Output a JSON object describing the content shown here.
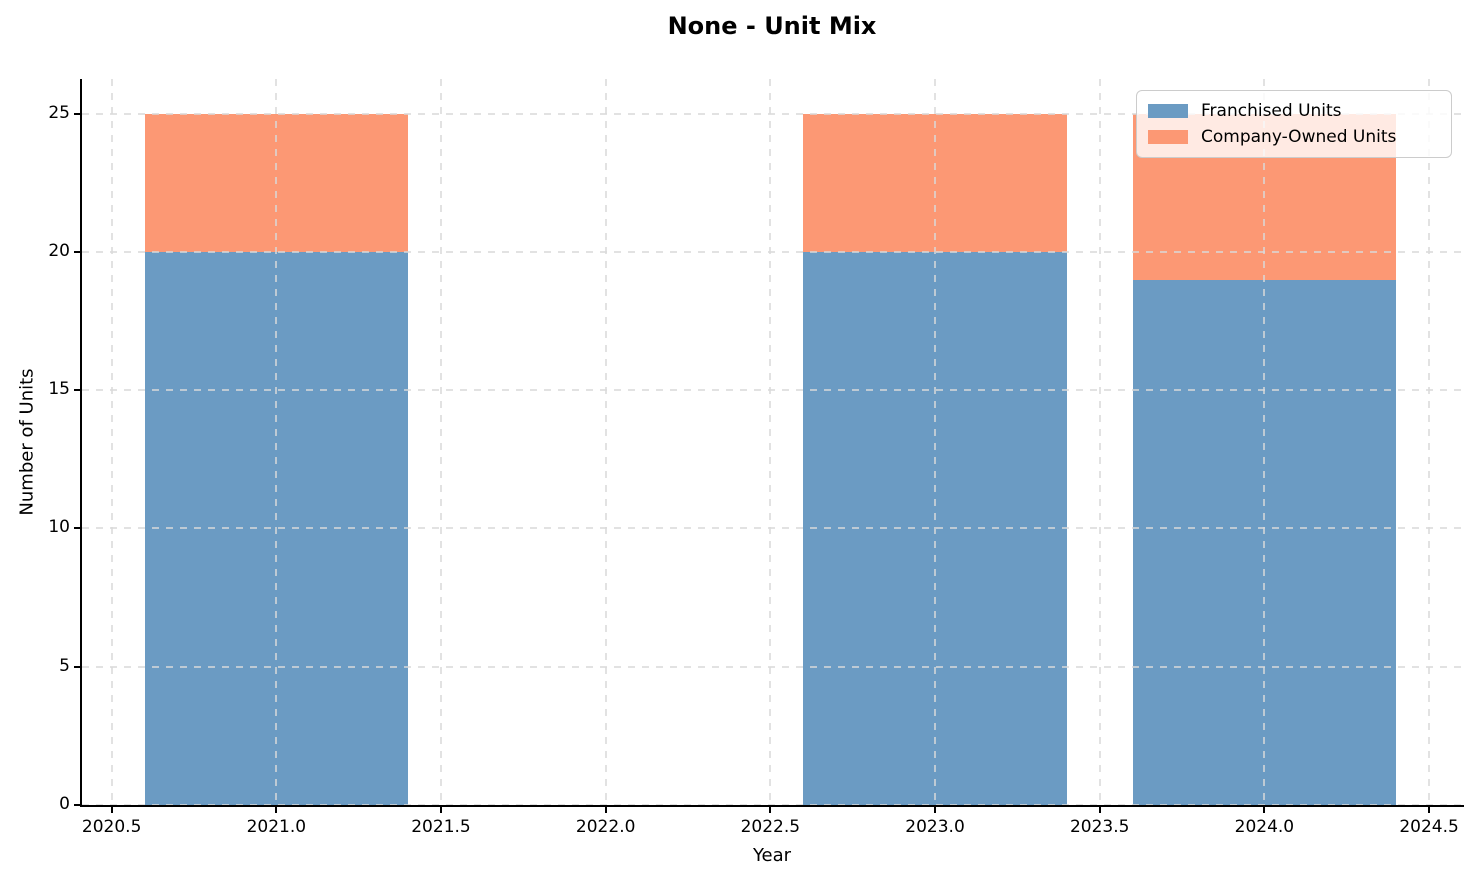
{
  "chart_data": {
    "type": "bar",
    "stacked": true,
    "title": "None - Unit Mix",
    "xlabel": "Year",
    "ylabel": "Number of Units",
    "categories": [
      2021,
      2023,
      2024
    ],
    "bar_width": 0.8,
    "series": [
      {
        "name": "Franchised Units",
        "color": "#6B9BC3",
        "values": [
          20,
          20,
          19
        ]
      },
      {
        "name": "Company-Owned Units",
        "color": "#FC9874",
        "values": [
          5,
          5,
          6
        ]
      }
    ],
    "totals": [
      25,
      25,
      25
    ],
    "xlim": [
      2020.41,
      2024.6
    ],
    "ylim": [
      0,
      26.25
    ],
    "xticks": [
      {
        "value": 2020.5,
        "label": "2020.5"
      },
      {
        "value": 2021.0,
        "label": "2021.0"
      },
      {
        "value": 2021.5,
        "label": "2021.5"
      },
      {
        "value": 2022.0,
        "label": "2022.0"
      },
      {
        "value": 2022.5,
        "label": "2022.5"
      },
      {
        "value": 2023.0,
        "label": "2023.0"
      },
      {
        "value": 2023.5,
        "label": "2023.5"
      },
      {
        "value": 2024.0,
        "label": "2024.0"
      },
      {
        "value": 2024.5,
        "label": "2024.5"
      }
    ],
    "yticks": [
      {
        "value": 0,
        "label": "0"
      },
      {
        "value": 5,
        "label": "5"
      },
      {
        "value": 10,
        "label": "10"
      },
      {
        "value": 15,
        "label": "15"
      },
      {
        "value": 20,
        "label": "20"
      },
      {
        "value": 25,
        "label": "25"
      }
    ],
    "grid": true,
    "grid_style": "dashed",
    "grid_color": "#D9D9D9",
    "axis_color": "#000000",
    "background_color": "#FFFFFF",
    "legend_position": "upper right"
  }
}
